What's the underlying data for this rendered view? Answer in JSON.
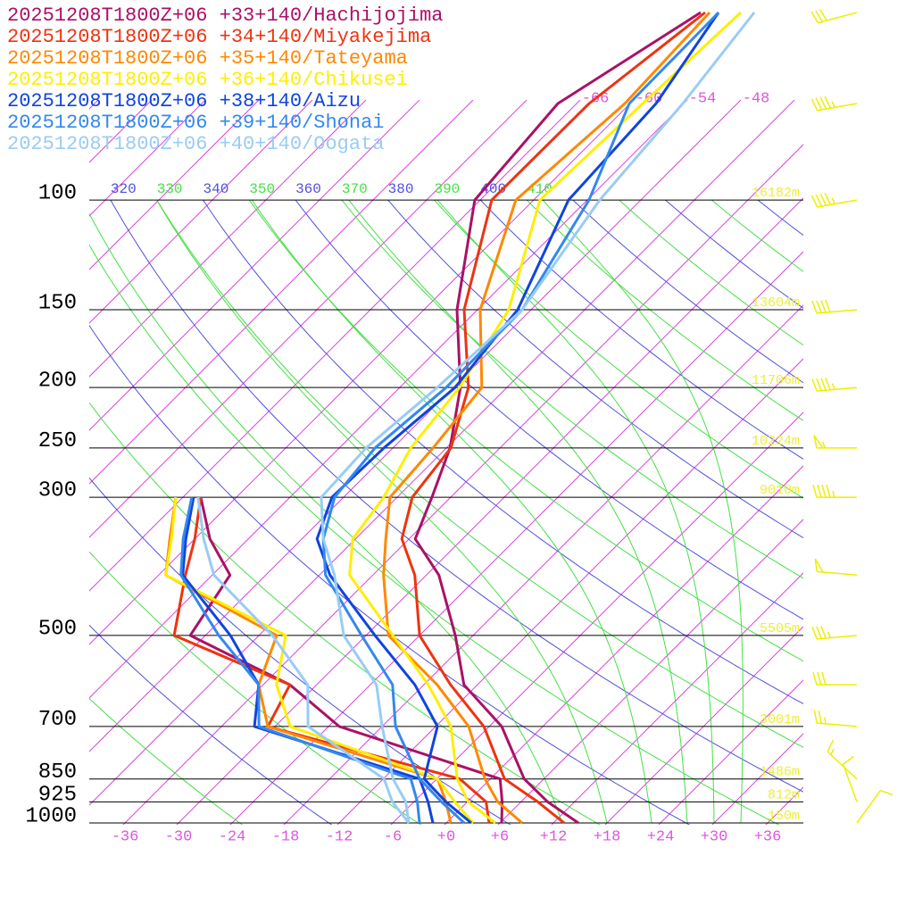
{
  "chart_data": {
    "type": "skewt",
    "pressure_levels": [
      1000,
      925,
      850,
      700,
      500,
      300,
      250,
      200,
      150,
      100
    ],
    "height_labels": [
      {
        "pressure": 1000,
        "value": 150,
        "label": "150m"
      },
      {
        "pressure": 925,
        "value": 812,
        "label": "812m"
      },
      {
        "pressure": 850,
        "value": 1486,
        "label": "1486m"
      },
      {
        "pressure": 700,
        "value": 3001,
        "label": "3001m"
      },
      {
        "pressure": 500,
        "value": 5505,
        "label": "5505m"
      },
      {
        "pressure": 300,
        "value": 9010,
        "label": "9010m"
      },
      {
        "pressure": 250,
        "value": 10224,
        "label": "10224m"
      },
      {
        "pressure": 200,
        "value": 11706,
        "label": "11706m"
      },
      {
        "pressure": 150,
        "value": 13604,
        "label": "13604m"
      },
      {
        "pressure": 100,
        "value": 16182,
        "label": "16182m"
      }
    ],
    "xticks": [
      -36,
      -30,
      -24,
      -18,
      -12,
      -6,
      {
        "value": 0,
        "label": "+0"
      },
      {
        "value": 6,
        "label": "+6"
      },
      {
        "value": 12,
        "label": "+12"
      },
      {
        "value": 18,
        "label": "+18"
      },
      {
        "value": 24,
        "label": "+24"
      },
      {
        "value": 30,
        "label": "+30"
      },
      {
        "value": 36,
        "label": "+36"
      }
    ],
    "top_isotherm_labels": [
      -66,
      -60,
      -54,
      -48
    ],
    "isotherms": [
      -120,
      -114,
      -108,
      -102,
      -96,
      -90,
      -84,
      -78,
      -72,
      -66,
      -60,
      -54,
      -48,
      -42,
      -36,
      -30,
      -24,
      -18,
      -12,
      -6,
      0,
      6,
      12,
      18,
      24,
      30,
      36
    ],
    "isotherm_color": "#dd44dd",
    "theta": [
      250,
      260,
      270,
      280,
      290,
      300,
      310,
      320,
      330,
      340,
      350,
      360,
      370,
      380,
      390,
      400,
      410,
      420,
      430,
      440,
      450,
      460,
      470,
      480,
      490,
      500
    ],
    "theta_colors": [
      "#5050dd",
      "#44e044"
    ],
    "moist_adiabats": [
      13,
      18,
      23,
      27,
      30,
      33
    ],
    "moist_color": "#44e044",
    "height_color": "#eeee33",
    "wind_color": "#eeee00",
    "pressure": [
      1000,
      925,
      850,
      700,
      600,
      500,
      400,
      350,
      300,
      250,
      200,
      150,
      100,
      70,
      50
    ],
    "dew_pressure": [
      1000,
      925,
      850,
      700,
      600,
      500,
      400,
      350,
      300
    ],
    "series": [
      {
        "name": "20251208T1800Z+06 +33+140/Hachijojima",
        "color": "#aa1166",
        "temperature": [
          14.8,
          9.0,
          3.8,
          -4.6,
          -13.5,
          -20,
          -28.6,
          -35.3,
          -38.1,
          -41.6,
          -47.2,
          -56.3,
          -66.6,
          -68.1,
          -62.3
        ],
        "dewpoint": [
          6.2,
          3.9,
          1.1,
          -22.8,
          -33,
          -49.7,
          -52,
          -58.3,
          -64
        ]
      },
      {
        "name": "20251208T1800Z+06 +34+140/Miyakejima",
        "color": "#ee3311",
        "temperature": [
          13.2,
          7.9,
          1.6,
          -6.6,
          -15,
          -24,
          -31.3,
          -36.8,
          -40.3,
          -41.5,
          -46.3,
          -55.5,
          -64.7,
          -64.6,
          -61.8
        ],
        "dewpoint": [
          4.8,
          2.1,
          -3.4,
          -30.8,
          -33,
          -51.5,
          -57,
          -60,
          -64
        ]
      },
      {
        "name": "20251208T1800Z+06 +35+140/Tateyama",
        "color": "#ff8800",
        "temperature": [
          8.5,
          3.4,
          -0.6,
          -8.3,
          -16.5,
          -27.5,
          -34.8,
          -38.6,
          -42.8,
          -43.5,
          -44.8,
          -53.7,
          -62,
          -60.6,
          -61.3
        ],
        "dewpoint": [
          0.5,
          -2.4,
          -5.9,
          -30.8,
          -36.5,
          -40,
          -59.2,
          -62.8,
          -66.8
        ]
      },
      {
        "name": "20251208T1800Z+06 +36+140/Chikusei",
        "color": "#ffee00",
        "temperature": [
          5.5,
          0.1,
          -3.7,
          -10.3,
          -17.5,
          -27,
          -38.6,
          -42.3,
          -43.5,
          -46,
          -47.3,
          -50.5,
          -59.3,
          -58.6,
          -57.8
        ],
        "dewpoint": [
          3.0,
          -1.4,
          -5.9,
          -28.3,
          -34.5,
          -39,
          -59.2,
          -62.6,
          -66.8
        ]
      },
      {
        "name": "20251208T1800Z+06 +38+140/Aizu",
        "color": "#1144dd",
        "temperature": [
          2.8,
          -2.4,
          -7.4,
          -11.8,
          -19,
          -29,
          -40.8,
          -46.3,
          -49.3,
          -49,
          -47.8,
          -49.5,
          -56.1,
          -57.1,
          -60.3
        ],
        "dewpoint": [
          -1.5,
          -4.4,
          -7.9,
          -32.3,
          -36.5,
          -45.2,
          -57.3,
          -61,
          -64.8
        ]
      },
      {
        "name": "20251208T1800Z+06 +39+140/Shonai",
        "color": "#3388ee",
        "temperature": [
          2.0,
          -2.9,
          -7.9,
          -16.5,
          -21.5,
          -30.5,
          -41.3,
          -45.6,
          -49,
          -50,
          -48.8,
          -49,
          -53.8,
          -60.1,
          -60.3
        ],
        "dewpoint": [
          -3,
          -5.6,
          -8.9,
          -31.8,
          -36.5,
          -46.5,
          -57.5,
          -61.3,
          -65
        ]
      },
      {
        "name": "20251208T1800Z+06 +40+140/Oogata",
        "color": "#99ccf5",
        "temperature": [
          -4.2,
          -6.9,
          -10.9,
          -18,
          -23.3,
          -32.5,
          -40.3,
          -45.6,
          -50.5,
          -51,
          -49.8,
          -49,
          -52.6,
          -54.1,
          -56.3
        ],
        "dewpoint": [
          -4.2,
          -8.4,
          -11.9,
          -26.3,
          -31,
          -40.5,
          -53.8,
          -59,
          -64.3
        ]
      }
    ],
    "winds": [
      {
        "pressure": 50,
        "direction": 255,
        "speed": 30
      },
      {
        "pressure": 70,
        "direction": 260,
        "speed": 45
      },
      {
        "pressure": 100,
        "direction": 260,
        "speed": 45
      },
      {
        "pressure": 150,
        "direction": 265,
        "speed": 40
      },
      {
        "pressure": 200,
        "direction": 265,
        "speed": 45
      },
      {
        "pressure": 250,
        "direction": 270,
        "speed": 55
      },
      {
        "pressure": 300,
        "direction": 270,
        "speed": 45
      },
      {
        "pressure": 400,
        "direction": 275,
        "speed": 50
      },
      {
        "pressure": 500,
        "direction": 265,
        "speed": 35
      },
      {
        "pressure": 600,
        "direction": 270,
        "speed": 30
      },
      {
        "pressure": 700,
        "direction": 275,
        "speed": 25
      },
      {
        "pressure": 850,
        "direction": 313,
        "speed": 15
      },
      {
        "pressure": 925,
        "direction": 340,
        "speed": 10
      },
      {
        "pressure": 1000,
        "direction": 36,
        "speed": 10
      }
    ]
  }
}
